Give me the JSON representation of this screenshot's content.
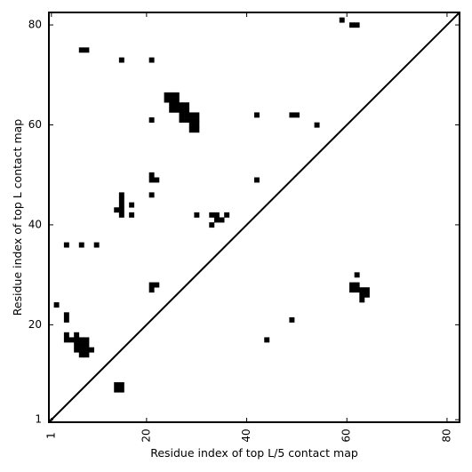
{
  "chart_data": {
    "type": "heatmap",
    "title": "",
    "xlabel": "Residue index of top L/5 contact map",
    "ylabel": "Residue index of top L contact map",
    "xlim": [
      0.5,
      82.5
    ],
    "ylim": [
      0.5,
      82.5
    ],
    "xticks": [
      1,
      20,
      40,
      60,
      80
    ],
    "yticks": [
      1,
      20,
      40,
      60,
      80
    ],
    "xtick_labels": [
      "1",
      "20",
      "40",
      "60",
      "80"
    ],
    "ytick_labels": [
      "1",
      "20",
      "40",
      "60",
      "80"
    ],
    "x_tick_label_rotation": 270,
    "grid": false,
    "legend": "none",
    "diagonal_line": true,
    "cell_color": "#000000",
    "background_color": "#ffffff",
    "contact_cells": [
      [
        7,
        75
      ],
      [
        8,
        75
      ],
      [
        15,
        73
      ],
      [
        21,
        73
      ],
      [
        59,
        81
      ],
      [
        61,
        80
      ],
      [
        62,
        80
      ],
      [
        24,
        66
      ],
      [
        25,
        66
      ],
      [
        26,
        66
      ],
      [
        24,
        65
      ],
      [
        25,
        65
      ],
      [
        26,
        65
      ],
      [
        25,
        64
      ],
      [
        26,
        64
      ],
      [
        27,
        64
      ],
      [
        28,
        64
      ],
      [
        25,
        63
      ],
      [
        26,
        63
      ],
      [
        27,
        63
      ],
      [
        28,
        63
      ],
      [
        27,
        62
      ],
      [
        28,
        62
      ],
      [
        29,
        62
      ],
      [
        30,
        62
      ],
      [
        27,
        61
      ],
      [
        28,
        61
      ],
      [
        29,
        61
      ],
      [
        30,
        61
      ],
      [
        29,
        60
      ],
      [
        30,
        60
      ],
      [
        29,
        59
      ],
      [
        30,
        59
      ],
      [
        21,
        61
      ],
      [
        42,
        62
      ],
      [
        49,
        62
      ],
      [
        50,
        62
      ],
      [
        54,
        60
      ],
      [
        21,
        50
      ],
      [
        21,
        49
      ],
      [
        22,
        49
      ],
      [
        42,
        49
      ],
      [
        15,
        46
      ],
      [
        21,
        46
      ],
      [
        15,
        45
      ],
      [
        15,
        44
      ],
      [
        17,
        44
      ],
      [
        14,
        43
      ],
      [
        15,
        43
      ],
      [
        15,
        42
      ],
      [
        17,
        42
      ],
      [
        30,
        42
      ],
      [
        33,
        42
      ],
      [
        34,
        42
      ],
      [
        36,
        42
      ],
      [
        34,
        41
      ],
      [
        35,
        41
      ],
      [
        33,
        40
      ],
      [
        4,
        36
      ],
      [
        7,
        36
      ],
      [
        10,
        36
      ],
      [
        62,
        30
      ],
      [
        2,
        24
      ],
      [
        61,
        28
      ],
      [
        62,
        28
      ],
      [
        21,
        28
      ],
      [
        22,
        28
      ],
      [
        21,
        27
      ],
      [
        61,
        27
      ],
      [
        62,
        27
      ],
      [
        63,
        27
      ],
      [
        64,
        27
      ],
      [
        63,
        26
      ],
      [
        64,
        26
      ],
      [
        63,
        25
      ],
      [
        4,
        22
      ],
      [
        4,
        21
      ],
      [
        49,
        21
      ],
      [
        4,
        18
      ],
      [
        6,
        18
      ],
      [
        4,
        17
      ],
      [
        5,
        17
      ],
      [
        6,
        17
      ],
      [
        7,
        17
      ],
      [
        8,
        17
      ],
      [
        44,
        17
      ],
      [
        6,
        16
      ],
      [
        7,
        16
      ],
      [
        8,
        16
      ],
      [
        6,
        15
      ],
      [
        7,
        15
      ],
      [
        8,
        15
      ],
      [
        9,
        15
      ],
      [
        7,
        14
      ],
      [
        8,
        14
      ],
      [
        14,
        8
      ],
      [
        15,
        8
      ],
      [
        14,
        7
      ],
      [
        15,
        7
      ]
    ]
  }
}
